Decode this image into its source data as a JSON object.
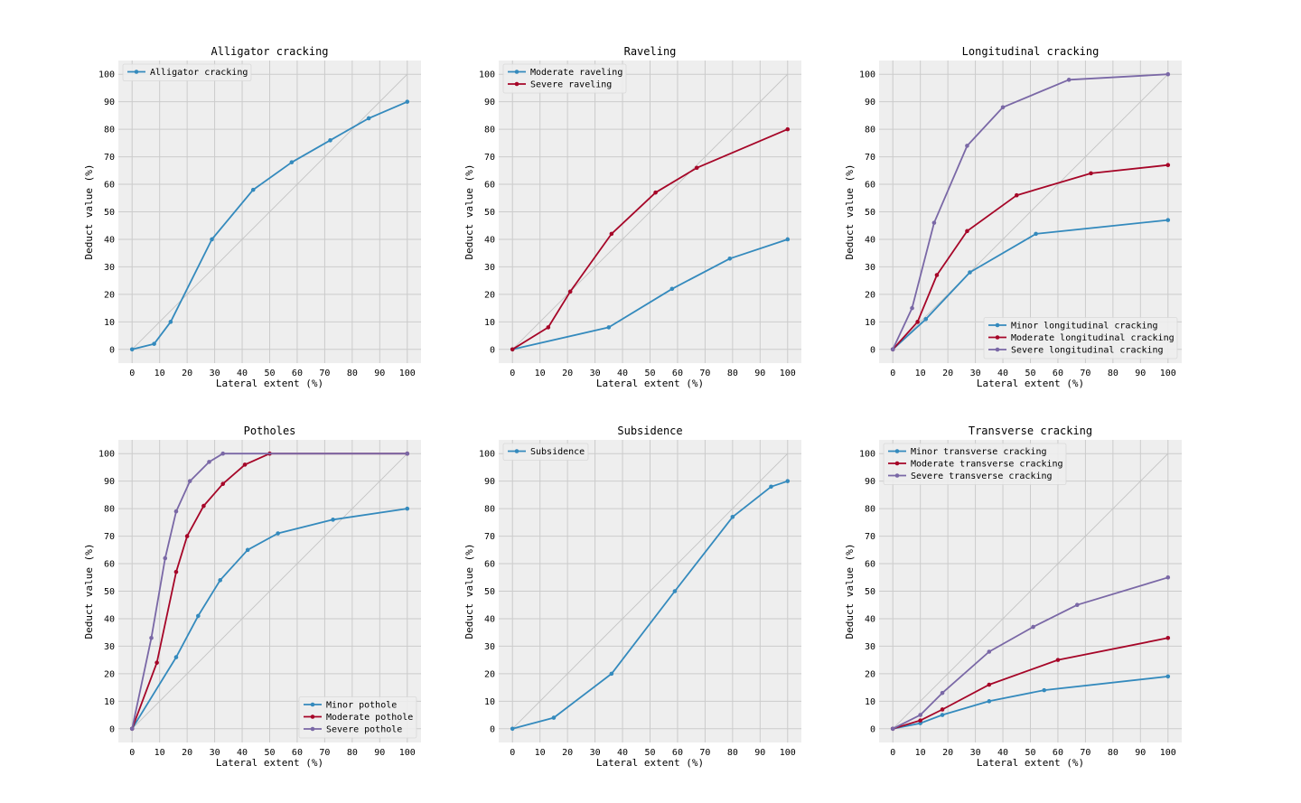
{
  "colors": {
    "blue": "#348ABD",
    "red": "#A60628",
    "purple": "#7A68A6",
    "panel_bg": "#EEEEEE",
    "grid": "#CBCBCB",
    "diagonal": "#C4C4C4"
  },
  "chart_data": [
    {
      "type": "line",
      "title": "Alligator cracking",
      "xlabel": "Lateral extent (%)",
      "ylabel": "Deduct value (%)",
      "xlim": [
        -5,
        105
      ],
      "ylim": [
        -5,
        105
      ],
      "xticks": [
        "0",
        "10",
        "20",
        "30",
        "40",
        "50",
        "60",
        "70",
        "80",
        "90",
        "100"
      ],
      "yticks": [
        "0",
        "10",
        "20",
        "30",
        "40",
        "50",
        "60",
        "70",
        "80",
        "90",
        "100"
      ],
      "legend": "top-left",
      "diagonal": true,
      "series": [
        {
          "name": "Alligator cracking",
          "color": "#348ABD",
          "x": [
            0,
            8,
            14,
            29,
            44,
            58,
            72,
            86,
            100
          ],
          "y": [
            0,
            2,
            10,
            40,
            58,
            68,
            76,
            84,
            90
          ]
        }
      ]
    },
    {
      "type": "line",
      "title": "Raveling",
      "xlabel": "Lateral extent (%)",
      "ylabel": "Deduct value (%)",
      "xlim": [
        -5,
        105
      ],
      "ylim": [
        -5,
        105
      ],
      "xticks": [
        "0",
        "10",
        "20",
        "30",
        "40",
        "50",
        "60",
        "70",
        "80",
        "90",
        "100"
      ],
      "yticks": [
        "0",
        "10",
        "20",
        "30",
        "40",
        "50",
        "60",
        "70",
        "80",
        "90",
        "100"
      ],
      "legend": "top-left",
      "diagonal": true,
      "series": [
        {
          "name": "Moderate raveling",
          "color": "#348ABD",
          "x": [
            0,
            35,
            58,
            79,
            100
          ],
          "y": [
            0,
            8,
            22,
            33,
            40
          ]
        },
        {
          "name": "Severe raveling",
          "color": "#A60628",
          "x": [
            0,
            13,
            21,
            36,
            52,
            67,
            100
          ],
          "y": [
            0,
            8,
            21,
            42,
            57,
            66,
            80
          ]
        }
      ]
    },
    {
      "type": "line",
      "title": "Longitudinal cracking",
      "xlabel": "Lateral extent (%)",
      "ylabel": "Deduct value (%)",
      "xlim": [
        -5,
        105
      ],
      "ylim": [
        -5,
        105
      ],
      "xticks": [
        "0",
        "10",
        "20",
        "30",
        "40",
        "50",
        "60",
        "70",
        "80",
        "90",
        "100"
      ],
      "yticks": [
        "0",
        "10",
        "20",
        "30",
        "40",
        "50",
        "60",
        "70",
        "80",
        "90",
        "100"
      ],
      "legend": "bottom-right",
      "diagonal": true,
      "series": [
        {
          "name": "Minor longitudinal cracking",
          "color": "#348ABD",
          "x": [
            0,
            12,
            28,
            52,
            100
          ],
          "y": [
            0,
            11,
            28,
            42,
            47
          ]
        },
        {
          "name": "Moderate longitudinal cracking",
          "color": "#A60628",
          "x": [
            0,
            9,
            16,
            27,
            45,
            72,
            100
          ],
          "y": [
            0,
            10,
            27,
            43,
            56,
            64,
            67
          ]
        },
        {
          "name": "Severe longitudinal cracking",
          "color": "#7A68A6",
          "x": [
            0,
            7,
            15,
            27,
            40,
            64,
            100
          ],
          "y": [
            0,
            15,
            46,
            74,
            88,
            98,
            100
          ]
        }
      ]
    },
    {
      "type": "line",
      "title": "Potholes",
      "xlabel": "Lateral extent (%)",
      "ylabel": "Deduct value (%)",
      "xlim": [
        -5,
        105
      ],
      "ylim": [
        -5,
        105
      ],
      "xticks": [
        "0",
        "10",
        "20",
        "30",
        "40",
        "50",
        "60",
        "70",
        "80",
        "90",
        "100"
      ],
      "yticks": [
        "0",
        "10",
        "20",
        "30",
        "40",
        "50",
        "60",
        "70",
        "80",
        "90",
        "100"
      ],
      "legend": "bottom-right",
      "diagonal": true,
      "series": [
        {
          "name": "Minor pothole",
          "color": "#348ABD",
          "x": [
            0,
            16,
            24,
            32,
            42,
            53,
            73,
            100
          ],
          "y": [
            0,
            26,
            41,
            54,
            65,
            71,
            76,
            80
          ]
        },
        {
          "name": "Moderate pothole",
          "color": "#A60628",
          "x": [
            0,
            9,
            16,
            20,
            26,
            33,
            41,
            50,
            100
          ],
          "y": [
            0,
            24,
            57,
            70,
            81,
            89,
            96,
            100,
            100
          ]
        },
        {
          "name": "Severe pothole",
          "color": "#7A68A6",
          "x": [
            0,
            7,
            12,
            16,
            21,
            28,
            33,
            100
          ],
          "y": [
            0,
            33,
            62,
            79,
            90,
            97,
            100,
            100
          ]
        }
      ]
    },
    {
      "type": "line",
      "title": "Subsidence",
      "xlabel": "Lateral extent (%)",
      "ylabel": "Deduct value (%)",
      "xlim": [
        -5,
        105
      ],
      "ylim": [
        -5,
        105
      ],
      "xticks": [
        "0",
        "10",
        "20",
        "30",
        "40",
        "50",
        "60",
        "70",
        "80",
        "90",
        "100"
      ],
      "yticks": [
        "0",
        "10",
        "20",
        "30",
        "40",
        "50",
        "60",
        "70",
        "80",
        "90",
        "100"
      ],
      "legend": "top-left",
      "diagonal": true,
      "series": [
        {
          "name": "Subsidence",
          "color": "#348ABD",
          "x": [
            0,
            15,
            36,
            59,
            80,
            94,
            100
          ],
          "y": [
            0,
            4,
            20,
            50,
            77,
            88,
            90
          ]
        }
      ]
    },
    {
      "type": "line",
      "title": "Transverse cracking",
      "xlabel": "Lateral extent (%)",
      "ylabel": "Deduct value (%)",
      "xlim": [
        -5,
        105
      ],
      "ylim": [
        -5,
        105
      ],
      "xticks": [
        "0",
        "10",
        "20",
        "30",
        "40",
        "50",
        "60",
        "70",
        "80",
        "90",
        "100"
      ],
      "yticks": [
        "0",
        "10",
        "20",
        "30",
        "40",
        "50",
        "60",
        "70",
        "80",
        "90",
        "100"
      ],
      "legend": "top-left",
      "diagonal": true,
      "series": [
        {
          "name": "Minor transverse cracking",
          "color": "#348ABD",
          "x": [
            0,
            10,
            18,
            35,
            55,
            100
          ],
          "y": [
            0,
            2,
            5,
            10,
            14,
            19
          ]
        },
        {
          "name": "Moderate transverse cracking",
          "color": "#A60628",
          "x": [
            0,
            10,
            18,
            35,
            60,
            100
          ],
          "y": [
            0,
            3,
            7,
            16,
            25,
            33
          ]
        },
        {
          "name": "Severe transverse cracking",
          "color": "#7A68A6",
          "x": [
            0,
            10,
            18,
            35,
            51,
            67,
            100
          ],
          "y": [
            0,
            5,
            13,
            28,
            37,
            45,
            55
          ]
        }
      ]
    }
  ]
}
